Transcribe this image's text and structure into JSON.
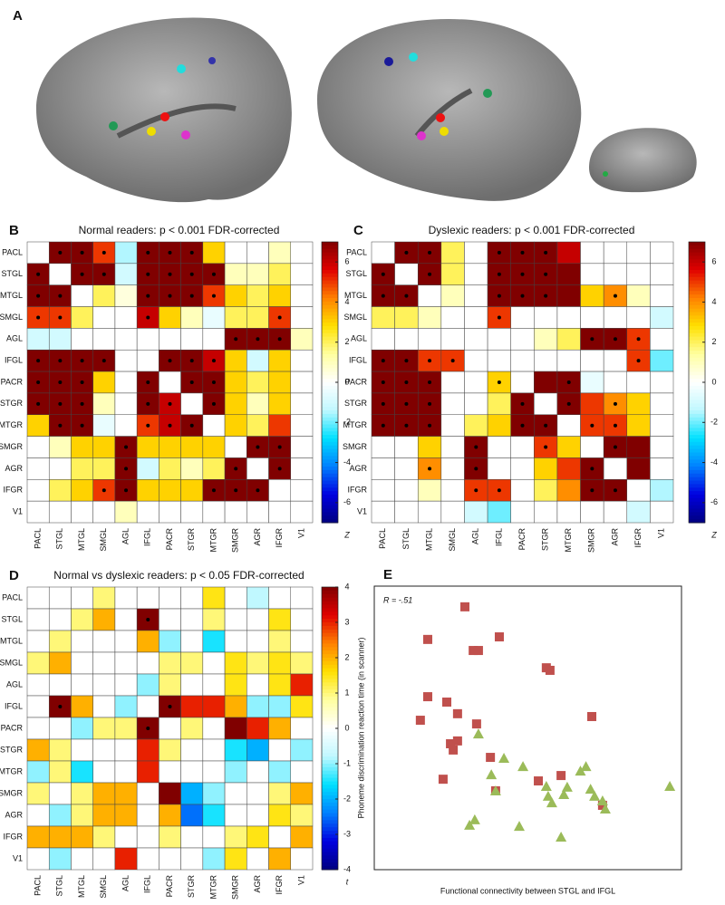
{
  "panel_a": {
    "label": "A"
  },
  "chart_data": [
    {
      "type": "heatmap",
      "label": "B",
      "title": "Normal readers: p < 0.001 FDR-corrected",
      "categories": [
        "PACL",
        "STGL",
        "MTGL",
        "SMGL",
        "AGL",
        "IFGL",
        "PACR",
        "STGR",
        "MTGR",
        "SMGR",
        "AGR",
        "IFGR",
        "V1"
      ],
      "values": [
        [
          null,
          7,
          7,
          5,
          -1.5,
          7,
          7,
          7,
          3,
          0,
          0,
          1,
          0
        ],
        [
          7,
          null,
          7,
          7,
          -1,
          7,
          7,
          7,
          7,
          1,
          1,
          2,
          0
        ],
        [
          7,
          7,
          null,
          2,
          0.5,
          7,
          7,
          7,
          5,
          3,
          2,
          3,
          0
        ],
        [
          5,
          5,
          2,
          null,
          0,
          6,
          3,
          1,
          -0.5,
          2,
          2,
          5,
          0
        ],
        [
          -1,
          -1,
          0,
          0,
          null,
          0,
          0,
          0,
          0,
          7,
          7,
          7,
          1
        ],
        [
          7,
          7,
          7,
          7,
          0,
          null,
          7,
          7,
          6,
          3,
          -1,
          3,
          0
        ],
        [
          7,
          7,
          7,
          3,
          0,
          7,
          null,
          7,
          7,
          3,
          2,
          3,
          0
        ],
        [
          7,
          7,
          7,
          1,
          0,
          7,
          6,
          null,
          7,
          3,
          1,
          3,
          0
        ],
        [
          3,
          7,
          7,
          -0.5,
          0,
          5,
          6,
          7,
          null,
          3,
          2,
          5,
          0
        ],
        [
          0,
          1,
          3,
          3,
          7,
          3,
          3,
          3,
          3,
          null,
          7,
          7,
          0
        ],
        [
          0,
          0,
          2,
          2,
          7,
          -1,
          2,
          1,
          2,
          7,
          null,
          7,
          0
        ],
        [
          0,
          2,
          3,
          5,
          7,
          3,
          3,
          3,
          7,
          7,
          7,
          null,
          0
        ],
        [
          0,
          0,
          0,
          0,
          1,
          0,
          0,
          0,
          0,
          0,
          0,
          0,
          null
        ]
      ],
      "dots": [
        [
          0,
          1
        ],
        [
          0,
          2
        ],
        [
          0,
          3
        ],
        [
          0,
          5
        ],
        [
          0,
          6
        ],
        [
          0,
          7
        ],
        [
          1,
          0
        ],
        [
          1,
          2
        ],
        [
          1,
          3
        ],
        [
          1,
          5
        ],
        [
          1,
          6
        ],
        [
          1,
          7
        ],
        [
          1,
          8
        ],
        [
          2,
          0
        ],
        [
          2,
          1
        ],
        [
          2,
          5
        ],
        [
          2,
          6
        ],
        [
          2,
          7
        ],
        [
          2,
          8
        ],
        [
          3,
          0
        ],
        [
          3,
          1
        ],
        [
          3,
          5
        ],
        [
          3,
          11
        ],
        [
          4,
          9
        ],
        [
          4,
          10
        ],
        [
          4,
          11
        ],
        [
          5,
          0
        ],
        [
          5,
          1
        ],
        [
          5,
          2
        ],
        [
          5,
          3
        ],
        [
          5,
          6
        ],
        [
          5,
          7
        ],
        [
          5,
          8
        ],
        [
          6,
          0
        ],
        [
          6,
          1
        ],
        [
          6,
          2
        ],
        [
          6,
          5
        ],
        [
          6,
          7
        ],
        [
          6,
          8
        ],
        [
          7,
          0
        ],
        [
          7,
          1
        ],
        [
          7,
          2
        ],
        [
          7,
          5
        ],
        [
          7,
          6
        ],
        [
          7,
          8
        ],
        [
          8,
          1
        ],
        [
          8,
          2
        ],
        [
          8,
          5
        ],
        [
          8,
          6
        ],
        [
          8,
          7
        ],
        [
          9,
          4
        ],
        [
          9,
          10
        ],
        [
          9,
          11
        ],
        [
          10,
          4
        ],
        [
          10,
          9
        ],
        [
          10,
          11
        ],
        [
          11,
          3
        ],
        [
          11,
          4
        ],
        [
          11,
          8
        ],
        [
          11,
          9
        ],
        [
          11,
          10
        ]
      ],
      "zlim": [
        -7,
        7
      ],
      "zticks": [
        6,
        4,
        2,
        0,
        -2,
        -4,
        -6
      ],
      "colorbar_label": "Z",
      "colormap": [
        "#000080",
        "#0000e0",
        "#0080ff",
        "#00e0ff",
        "#c0f8ff",
        "#ffffff",
        "#ffffa0",
        "#ffe000",
        "#ff8000",
        "#e00000",
        "#800000"
      ]
    },
    {
      "type": "heatmap",
      "label": "C",
      "title": "Dyslexic readers: p < 0.001 FDR-corrected",
      "categories": [
        "PACL",
        "STGL",
        "MTGL",
        "SMGL",
        "AGL",
        "IFGL",
        "PACR",
        "STGR",
        "MTGR",
        "SMGR",
        "AGR",
        "IFGR",
        "V1"
      ],
      "values": [
        [
          null,
          7,
          7,
          2,
          0,
          7,
          7,
          7,
          6,
          0,
          0,
          0,
          0
        ],
        [
          7,
          null,
          7,
          2,
          0,
          7,
          7,
          7,
          7,
          0,
          0,
          0,
          0
        ],
        [
          7,
          7,
          null,
          1,
          0,
          7,
          7,
          7,
          7,
          3,
          4,
          1,
          0
        ],
        [
          2,
          2,
          1,
          null,
          0,
          5,
          0,
          0,
          0,
          0,
          0,
          0,
          -1
        ],
        [
          0,
          0,
          0,
          0,
          null,
          0,
          0,
          1,
          2,
          7,
          7,
          5,
          0
        ],
        [
          7,
          7,
          5,
          5,
          0,
          null,
          0,
          0,
          0,
          0,
          0,
          5,
          -2
        ],
        [
          7,
          7,
          7,
          0,
          0,
          3,
          null,
          7,
          7,
          -0.5,
          0,
          0,
          0
        ],
        [
          7,
          7,
          7,
          0,
          0,
          2,
          7,
          null,
          7,
          5,
          4,
          3,
          0
        ],
        [
          7,
          7,
          7,
          0,
          2,
          3,
          7,
          7,
          null,
          5,
          5,
          3,
          0
        ],
        [
          0,
          0,
          3,
          0,
          7,
          0,
          0,
          5,
          3,
          null,
          7,
          7,
          0
        ],
        [
          0,
          0,
          4,
          0,
          7,
          0,
          0,
          3,
          5,
          7,
          null,
          7,
          0
        ],
        [
          0,
          0,
          1,
          0,
          5,
          5,
          0,
          2,
          4,
          7,
          7,
          null,
          -1.5
        ],
        [
          0,
          0,
          0,
          0,
          -1,
          -2,
          0,
          0,
          0,
          0,
          0,
          -1,
          null
        ]
      ],
      "dots": [
        [
          0,
          1
        ],
        [
          0,
          2
        ],
        [
          0,
          5
        ],
        [
          0,
          6
        ],
        [
          0,
          7
        ],
        [
          1,
          0
        ],
        [
          1,
          2
        ],
        [
          1,
          5
        ],
        [
          1,
          6
        ],
        [
          1,
          7
        ],
        [
          2,
          0
        ],
        [
          2,
          1
        ],
        [
          2,
          5
        ],
        [
          2,
          6
        ],
        [
          2,
          7
        ],
        [
          2,
          10
        ],
        [
          3,
          5
        ],
        [
          4,
          9
        ],
        [
          4,
          10
        ],
        [
          4,
          11
        ],
        [
          5,
          0
        ],
        [
          5,
          1
        ],
        [
          5,
          2
        ],
        [
          5,
          3
        ],
        [
          5,
          11
        ],
        [
          6,
          0
        ],
        [
          6,
          1
        ],
        [
          6,
          2
        ],
        [
          6,
          5
        ],
        [
          6,
          8
        ],
        [
          7,
          0
        ],
        [
          7,
          1
        ],
        [
          7,
          2
        ],
        [
          7,
          6
        ],
        [
          7,
          8
        ],
        [
          7,
          10
        ],
        [
          8,
          0
        ],
        [
          8,
          1
        ],
        [
          8,
          2
        ],
        [
          8,
          6
        ],
        [
          8,
          7
        ],
        [
          8,
          9
        ],
        [
          8,
          10
        ],
        [
          9,
          4
        ],
        [
          9,
          7
        ],
        [
          9,
          10
        ],
        [
          10,
          2
        ],
        [
          10,
          4
        ],
        [
          10,
          9
        ],
        [
          11,
          4
        ],
        [
          11,
          5
        ],
        [
          11,
          9
        ],
        [
          11,
          10
        ]
      ],
      "zlim": [
        -7,
        7
      ],
      "zticks": [
        6,
        4,
        2,
        0,
        -2,
        -4,
        -6
      ],
      "colorbar_label": "Z",
      "colormap": [
        "#000080",
        "#0000e0",
        "#0080ff",
        "#00e0ff",
        "#c0f8ff",
        "#ffffff",
        "#ffffa0",
        "#ffe000",
        "#ff8000",
        "#e00000",
        "#800000"
      ]
    },
    {
      "type": "heatmap",
      "label": "D",
      "title": "Normal vs dyslexic readers: p < 0.05 FDR-corrected",
      "categories": [
        "PACL",
        "STGL",
        "MTGL",
        "SMGL",
        "AGL",
        "IFGL",
        "PACR",
        "STGR",
        "MTGR",
        "SMGR",
        "AGR",
        "IFGR",
        "V1"
      ],
      "values": [
        [
          null,
          0,
          0,
          1,
          0,
          0,
          0,
          0,
          1.5,
          0,
          -0.8,
          0,
          0
        ],
        [
          0,
          null,
          1,
          2,
          0,
          4,
          0,
          0,
          1,
          0,
          0,
          1.5,
          0
        ],
        [
          0,
          1,
          null,
          0,
          0,
          2,
          -1,
          0,
          -1.5,
          0,
          0,
          1,
          0
        ],
        [
          1,
          2,
          0,
          null,
          0,
          0,
          1,
          1,
          0,
          1.5,
          1,
          1.5,
          1
        ],
        [
          0,
          0,
          0,
          0,
          null,
          -1,
          1,
          0,
          0,
          1.5,
          0,
          1.5,
          3
        ],
        [
          0,
          4,
          2,
          0,
          -1,
          null,
          4,
          3,
          3,
          2,
          -1,
          -1,
          1.5
        ],
        [
          0,
          0,
          -1,
          1,
          1,
          4,
          null,
          1,
          0,
          4,
          3,
          2,
          0
        ],
        [
          2,
          1,
          0,
          0,
          0,
          3,
          1,
          null,
          0,
          -1.5,
          -2,
          0,
          -1
        ],
        [
          -1,
          1,
          -1.5,
          0,
          0,
          3,
          0,
          0,
          null,
          -1,
          0,
          -1,
          0
        ],
        [
          1,
          0,
          1,
          2,
          2,
          0,
          4,
          -2,
          -1,
          null,
          0,
          1,
          2
        ],
        [
          0,
          -1,
          1,
          2,
          2,
          0,
          2,
          -2.5,
          -1.5,
          0,
          null,
          1.5,
          1
        ],
        [
          2,
          2,
          2,
          1,
          0,
          0,
          1,
          0,
          0,
          1,
          1.5,
          null,
          2
        ],
        [
          0,
          -1,
          0,
          0,
          3,
          0,
          0,
          0,
          -1,
          1.5,
          0,
          2,
          null
        ]
      ],
      "dots": [
        [
          1,
          5
        ],
        [
          5,
          1
        ],
        [
          5,
          6
        ],
        [
          6,
          5
        ]
      ],
      "zlim": [
        -4,
        4
      ],
      "zticks": [
        4,
        3,
        2,
        1,
        0,
        -1,
        -2,
        -3,
        -4
      ],
      "colorbar_label": "t",
      "colormap": [
        "#000080",
        "#0000e0",
        "#0080ff",
        "#00e0ff",
        "#c0f8ff",
        "#ffffff",
        "#ffffa0",
        "#ffe000",
        "#ff8000",
        "#e00000",
        "#800000"
      ]
    },
    {
      "type": "scatter",
      "label": "E",
      "xlabel": "Functional connectivity between STGL and IFGL",
      "ylabel": "Phoneme discrimination reaction time (in scanner)",
      "annotation": "R = -.51",
      "xlim": [
        0,
        100
      ],
      "ylim": [
        0,
        100
      ],
      "series": [
        {
          "color": "#c0504d",
          "marker": "square",
          "x": [
            29.5,
            17.4,
            32.2,
            33.9,
            40.7,
            56,
            57.2,
            17.4,
            15,
            23.6,
            27.1,
            33.3,
            24.8,
            25.7,
            27.1,
            22.4,
            37.8,
            39.5,
            60.8,
            53.4,
            70.8,
            74.3
          ],
          "y": [
            92.7,
            81.2,
            77.3,
            77.3,
            82.1,
            71.2,
            70.3,
            61,
            52.7,
            59.1,
            55,
            51.4,
            44.4,
            42.2,
            45.4,
            31.9,
            39.6,
            27.8,
            33.2,
            31.3,
            54,
            22.7
          ]
        },
        {
          "color": "#9bbb59",
          "marker": "triangle",
          "x": [
            33.9,
            38.1,
            42.2,
            39.5,
            48.4,
            56,
            56.6,
            57.8,
            61.7,
            62.8,
            67.1,
            68.9,
            70.4,
            71.7,
            75.2,
            96.2,
            31,
            32.7,
            47.2,
            60.8,
            74.3
          ],
          "y": [
            47.9,
            33.5,
            39.3,
            27.8,
            36.4,
            29.4,
            25.9,
            23.6,
            26.5,
            29.1,
            34.8,
            36.4,
            28.4,
            25.9,
            21.4,
            29.4,
            15.7,
            17.6,
            15.3,
            11.5,
            24.3
          ]
        }
      ]
    }
  ]
}
